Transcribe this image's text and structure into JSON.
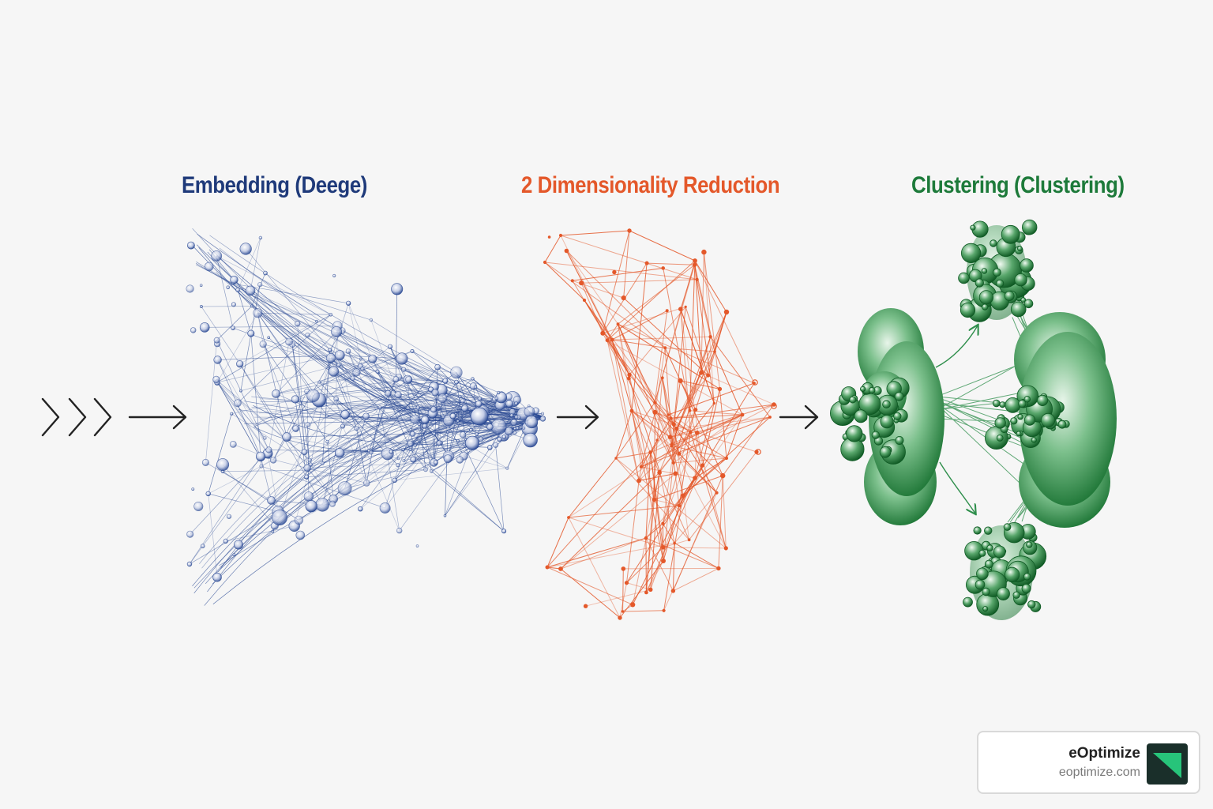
{
  "stages": [
    {
      "title": "Embedding (Deege)",
      "color": "#1f3a7a"
    },
    {
      "title": "2 Dimensionality Reduction",
      "color": "#e4582a"
    },
    {
      "title": "Clustering (Clustering)",
      "color": "#1d7a3a"
    }
  ],
  "brand": {
    "name": "eOptimize",
    "url": "eoptimize.com",
    "logo_dark": "#1a2f2a",
    "logo_accent": "#27c47a"
  },
  "icons": {
    "input_chevrons": "triple-chevron-right-icon",
    "flow_arrow": "arrow-right-icon"
  }
}
